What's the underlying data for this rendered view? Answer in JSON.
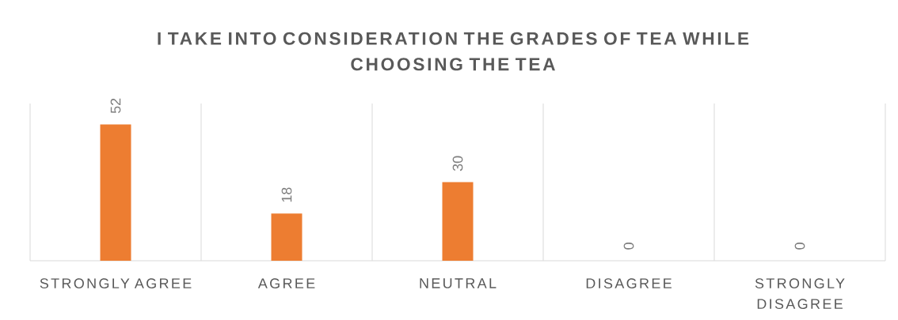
{
  "chart_data": {
    "type": "bar",
    "title": "I TAKE INTO CONSIDERATION THE GRADES OF TEA WHILE CHOOSING THE TEA",
    "categories": [
      "STRONGLY AGREE",
      "AGREE",
      "NEUTRAL",
      "DISAGREE",
      "STRONGLY DISAGREE"
    ],
    "values": [
      52,
      18,
      30,
      0,
      0
    ],
    "color": "#ed7d31",
    "ylim": [
      0,
      60
    ],
    "data_labels": true,
    "grid": "x",
    "tick_labels": "x"
  }
}
